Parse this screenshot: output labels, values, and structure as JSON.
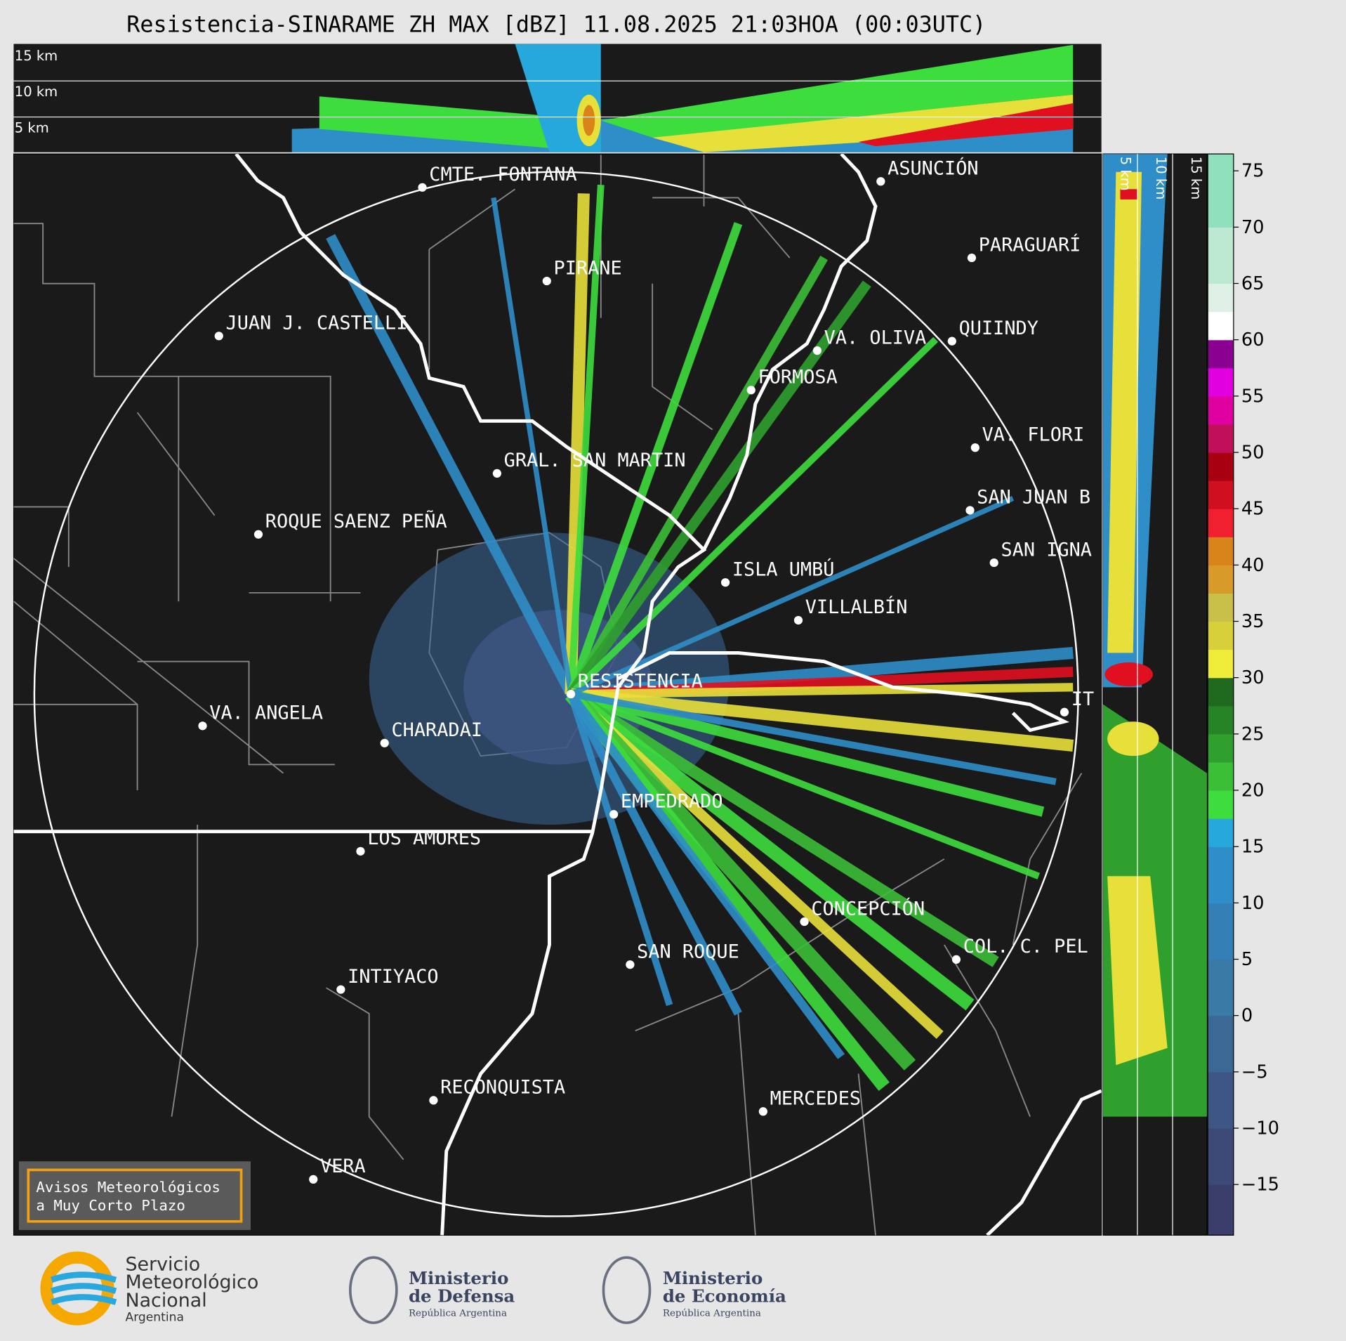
{
  "title": "Resistencia-SINARAME ZH MAX [dBZ] 11.08.2025 21:03HOA (00:03UTC)",
  "top_panel_heights": [
    "15 km",
    "10 km",
    "5 km"
  ],
  "side_panel_heights": [
    "5 km",
    "10 km",
    "15 km"
  ],
  "cities": [
    "CMTE. FONTANA",
    "ASUNCIÓN",
    "PARAGUARÍ",
    "PIRANE",
    "JUAN J. CASTELLI",
    "VA. OLIVA",
    "QUIINDY",
    "FORMOSA",
    "VA. FLORI",
    "GRAL. SAN MARTIN",
    "ROQUE SAENZ PEÑA",
    "SAN JUAN B",
    "SAN IGNA",
    "ISLA UMBÚ",
    "VILLALBÍN",
    "RESISTENCIA",
    "IT",
    "VA. ANGELA",
    "CHARADAI",
    "EMPEDRADO",
    "LOS AMORES",
    "CONCEPCIÓN",
    "COL. C. PEL",
    "SAN ROQUE",
    "INTIYACO",
    "RECONQUISTA",
    "MERCEDES",
    "VERA"
  ],
  "notice": [
    "Avisos Meteorológicos",
    "a Muy Corto Plazo"
  ],
  "colorbar": {
    "ylim": [
      -19.5,
      76.5
    ],
    "yticks": [
      {
        "value": -15,
        "label": "−15"
      },
      {
        "value": -10,
        "label": "−10"
      },
      {
        "value": -5,
        "label": "−5"
      },
      0,
      5,
      10,
      15,
      20,
      25,
      30,
      35,
      40,
      45,
      50,
      55,
      60,
      65,
      70,
      75
    ],
    "bounds": [
      -19.5,
      -15,
      -10,
      -5,
      0,
      5,
      10,
      15,
      17.5,
      20,
      22.5,
      25,
      27.5,
      30,
      32.5,
      35,
      37.5,
      40,
      42.5,
      45,
      47.5,
      50,
      52.5,
      55,
      57.5,
      60,
      62.5,
      65,
      70,
      76.5
    ],
    "colors": [
      "#3b3d6a",
      "#3d4a78",
      "#3e5684",
      "#3b6894",
      "#3a7aa6",
      "#347fb5",
      "#2f8ec8",
      "#27a8dc",
      "#3ddd3d",
      "#3bbf36",
      "#2fa02d",
      "#268426",
      "#1f6a1f",
      "#f0ec3a",
      "#d8d03a",
      "#c8c048",
      "#d89a28",
      "#d8841a",
      "#f02030",
      "#d01020",
      "#a80010",
      "#c0105a",
      "#e000a0",
      "#e000e0",
      "#8a0090",
      "#ffffff",
      "#dff0e6",
      "#bde8d2",
      "#90e0be"
    ]
  },
  "logos": [
    {
      "lines": [
        "Servicio",
        "Meteorológico",
        "Nacional",
        "Argentina"
      ]
    },
    {
      "lines": [
        "Ministerio",
        "de Defensa",
        "República Argentina"
      ]
    },
    {
      "lines": [
        "Ministerio",
        "de Economía",
        "República Argentina"
      ]
    }
  ]
}
